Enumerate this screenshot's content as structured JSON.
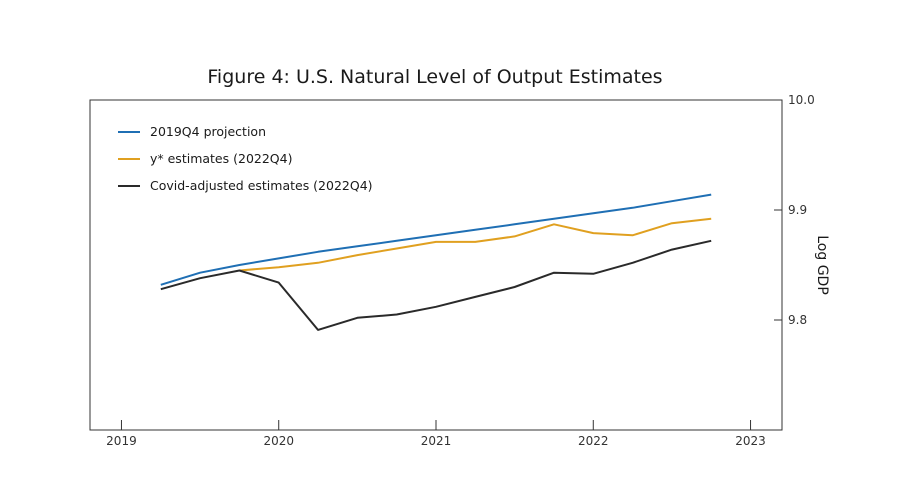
{
  "chart_data": {
    "type": "line",
    "title": "Figure 4: U.S. Natural Level of Output Estimates",
    "xlabel": "",
    "ylabel": "Log GDP",
    "xlim": [
      2018.8,
      2023.2
    ],
    "ylim": [
      9.7,
      10.0
    ],
    "x_ticks": [
      2019,
      2020,
      2021,
      2022,
      2023
    ],
    "y_ticks": [
      9.8,
      9.9,
      10.0
    ],
    "y_tick_labels": [
      "9.8",
      "9.9",
      "10.0"
    ],
    "y_axis_side": "right",
    "grid": false,
    "legend_position": "top-left",
    "series": [
      {
        "name": "2019Q4 projection",
        "color": "#1f6fb4",
        "x": [
          2019.25,
          2019.5,
          2019.75,
          2020.0,
          2020.25,
          2020.5,
          2020.75,
          2021.0,
          2021.25,
          2021.5,
          2021.75,
          2022.0,
          2022.25,
          2022.5,
          2022.75
        ],
        "y": [
          9.832,
          9.843,
          9.85,
          9.856,
          9.862,
          9.867,
          9.872,
          9.877,
          9.882,
          9.887,
          9.892,
          9.897,
          9.902,
          9.908,
          9.914
        ]
      },
      {
        "name": "y* estimates (2022Q4)",
        "color": "#e0a020",
        "x": [
          2019.75,
          2020.0,
          2020.25,
          2020.5,
          2020.75,
          2021.0,
          2021.25,
          2021.5,
          2021.75,
          2022.0,
          2022.25,
          2022.5,
          2022.75
        ],
        "y": [
          9.845,
          9.848,
          9.852,
          9.859,
          9.865,
          9.871,
          9.871,
          9.876,
          9.887,
          9.879,
          9.877,
          9.888,
          9.892
        ]
      },
      {
        "name": "Covid-adjusted estimates (2022Q4)",
        "color": "#2a2a2a",
        "x": [
          2019.25,
          2019.5,
          2019.75,
          2020.0,
          2020.25,
          2020.5,
          2020.75,
          2021.0,
          2021.25,
          2021.5,
          2021.75,
          2022.0,
          2022.25,
          2022.5,
          2022.75
        ],
        "y": [
          9.828,
          9.838,
          9.845,
          9.834,
          9.791,
          9.802,
          9.805,
          9.812,
          9.821,
          9.83,
          9.843,
          9.842,
          9.852,
          9.864,
          9.872
        ]
      }
    ]
  }
}
